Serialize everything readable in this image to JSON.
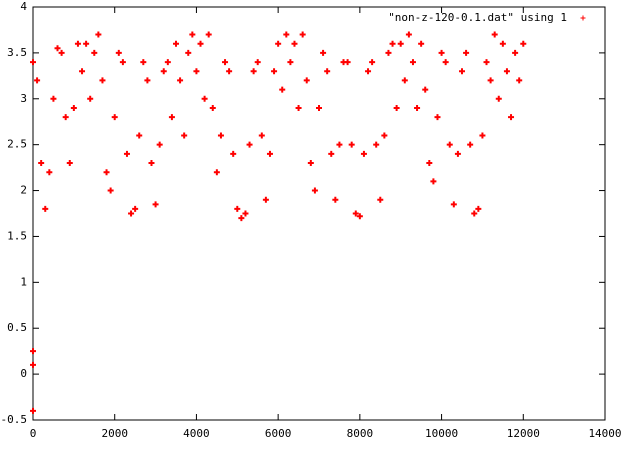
{
  "chart_data": {
    "type": "scatter",
    "series": [
      {
        "name": "\"non-z-120-0.1.dat\" using 1",
        "color": "#ff0000",
        "x": [
          0,
          0,
          0,
          0,
          100,
          200,
          300,
          400,
          500,
          600,
          700,
          800,
          900,
          1000,
          1100,
          1200,
          1300,
          1400,
          1500,
          1600,
          1700,
          1800,
          1900,
          2000,
          2100,
          2200,
          2300,
          2400,
          2500,
          2600,
          2700,
          2800,
          2900,
          3000,
          3100,
          3200,
          3300,
          3400,
          3500,
          3600,
          3700,
          3800,
          3900,
          4000,
          4100,
          4200,
          4300,
          4400,
          4500,
          4600,
          4700,
          4800,
          4900,
          5000,
          5100,
          5200,
          5300,
          5400,
          5500,
          5600,
          5700,
          5800,
          5900,
          6000,
          6100,
          6200,
          6300,
          6400,
          6500,
          6600,
          6700,
          6800,
          6900,
          7000,
          7100,
          7200,
          7300,
          7400,
          7500,
          7600,
          7700,
          7800,
          7900,
          8000,
          8100,
          8200,
          8300,
          8400,
          8500,
          8600,
          8700,
          8800,
          8900,
          9000,
          9100,
          9200,
          9300,
          9400,
          9500,
          9600,
          9700,
          9800,
          9900,
          10000,
          10100,
          10200,
          10300,
          10400,
          10500,
          10600,
          10700,
          10800,
          10900,
          11000,
          11100,
          11200,
          11300,
          11400,
          11500,
          11600,
          11700,
          11800,
          11900,
          12000
        ],
        "values": [
          0.25,
          0.1,
          -0.4,
          3.4,
          3.2,
          2.3,
          1.8,
          2.2,
          3.0,
          3.55,
          3.5,
          2.8,
          2.3,
          2.9,
          3.6,
          3.3,
          3.6,
          3.0,
          3.5,
          3.7,
          3.2,
          2.2,
          2.0,
          2.8,
          3.5,
          3.4,
          2.4,
          1.75,
          1.8,
          2.6,
          3.4,
          3.2,
          2.3,
          1.85,
          2.5,
          3.3,
          3.4,
          2.8,
          3.6,
          3.2,
          2.6,
          3.5,
          3.7,
          3.3,
          3.6,
          3.0,
          3.7,
          2.9,
          2.2,
          2.6,
          3.4,
          3.3,
          2.4,
          1.8,
          1.7,
          1.75,
          2.5,
          3.3,
          3.4,
          2.6,
          1.9,
          2.4,
          3.3,
          3.6,
          3.1,
          3.7,
          3.4,
          3.6,
          2.9,
          3.7,
          3.2,
          2.3,
          2.0,
          2.9,
          3.5,
          3.3,
          2.4,
          1.9,
          2.5,
          3.4,
          3.4,
          2.5,
          1.75,
          1.72,
          2.4,
          3.3,
          3.4,
          2.5,
          1.9,
          2.6,
          3.5,
          3.6,
          2.9,
          3.6,
          3.2,
          3.7,
          3.4,
          2.9,
          3.6,
          3.1,
          2.3,
          2.1,
          2.8,
          3.5,
          3.4,
          2.5,
          1.85,
          2.4,
          3.3,
          3.5,
          2.5,
          1.75,
          1.8,
          2.6,
          3.4,
          3.2,
          3.7,
          3.0,
          3.6,
          3.3,
          2.8,
          3.5,
          3.2,
          3.6
        ]
      }
    ],
    "xlim": [
      0,
      14000
    ],
    "xticks": [
      0,
      2000,
      4000,
      6000,
      8000,
      10000,
      12000,
      14000
    ],
    "ylim": [
      -0.5,
      4
    ],
    "yticks": [
      -0.5,
      0,
      0.5,
      1,
      1.5,
      2,
      2.5,
      3,
      3.5,
      4
    ],
    "legend": "top-right",
    "grid": false
  }
}
